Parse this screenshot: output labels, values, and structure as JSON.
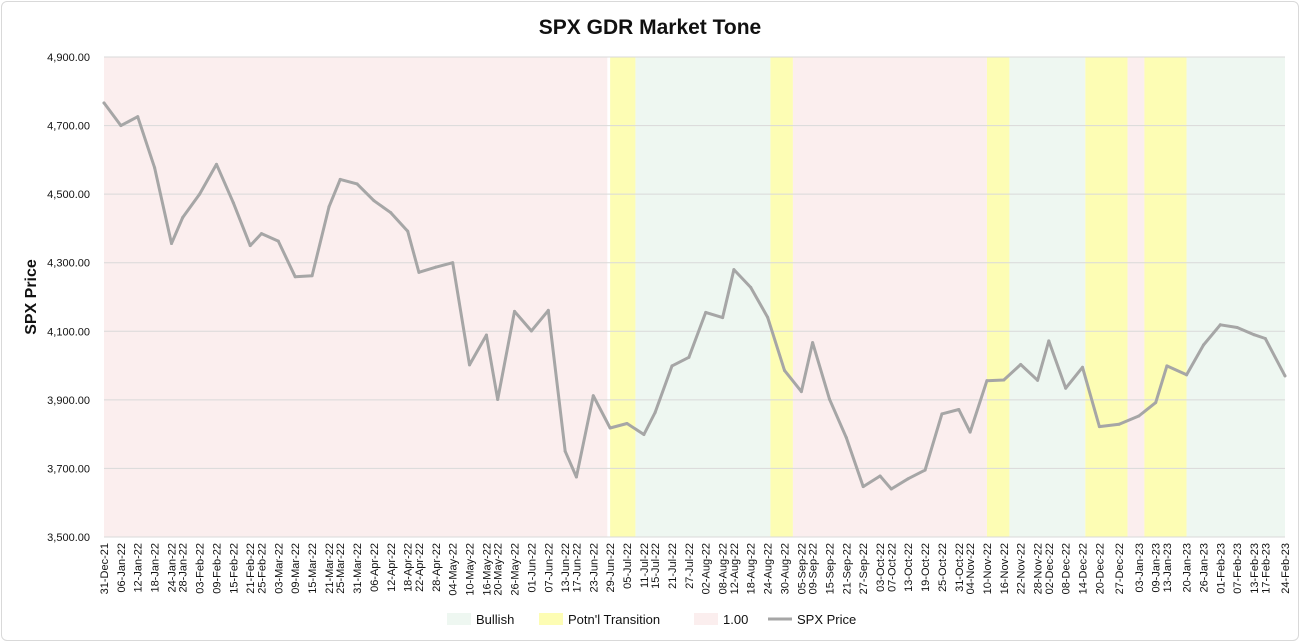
{
  "chart_data": {
    "type": "line",
    "title": "SPX GDR Market Tone",
    "xlabel": "",
    "ylabel": "SPX Price",
    "ylim": [
      3500,
      4900
    ],
    "yticks": [
      "3,500.00",
      "3,700.00",
      "3,900.00",
      "4,100.00",
      "4,300.00",
      "4,500.00",
      "4,700.00",
      "4,900.00"
    ],
    "ytick_values": [
      3500,
      3700,
      3900,
      4100,
      4300,
      4500,
      4700,
      4900
    ],
    "grid": "horizontal",
    "legend_position": "bottom",
    "x_tick_labels": [
      "31-Dec-21",
      "06-Jan-22",
      "12-Jan-22",
      "18-Jan-22",
      "24-Jan-22",
      "28-Jan-22",
      "03-Feb-22",
      "09-Feb-22",
      "15-Feb-22",
      "21-Feb-22",
      "25-Feb-22",
      "03-Mar-22",
      "09-Mar-22",
      "15-Mar-22",
      "21-Mar-22",
      "25-Mar-22",
      "31-Mar-22",
      "06-Apr-22",
      "12-Apr-22",
      "18-Apr-22",
      "22-Apr-22",
      "28-Apr-22",
      "04-May-22",
      "10-May-22",
      "16-May-22",
      "20-May-22",
      "26-May-22",
      "01-Jun-22",
      "07-Jun-22",
      "13-Jun-22",
      "17-Jun-22",
      "23-Jun-22",
      "29-Jun-22",
      "05-Jul-22",
      "11-Jul-22",
      "15-Jul-22",
      "21-Jul-22",
      "27-Jul-22",
      "02-Aug-22",
      "08-Aug-22",
      "12-Aug-22",
      "18-Aug-22",
      "24-Aug-22",
      "30-Aug-22",
      "05-Sep-22",
      "09-Sep-22",
      "15-Sep-22",
      "21-Sep-22",
      "27-Sep-22",
      "03-Oct-22",
      "07-Oct-22",
      "13-Oct-22",
      "19-Oct-22",
      "25-Oct-22",
      "31-Oct-22",
      "04-Nov-22",
      "10-Nov-22",
      "16-Nov-22",
      "22-Nov-22",
      "28-Nov-22",
      "02-Dec-22",
      "08-Dec-22",
      "14-Dec-22",
      "20-Dec-22",
      "27-Dec-22",
      "03-Jan-23",
      "09-Jan-23",
      "13-Jan-23",
      "20-Jan-23",
      "26-Jan-23",
      "01-Feb-23",
      "07-Feb-23",
      "13-Feb-23",
      "17-Feb-23",
      "24-Feb-23"
    ],
    "legend": [
      {
        "name": "Bullish",
        "color": "#eef7f1",
        "kind": "area"
      },
      {
        "name": "Potn'l Transition",
        "color": "#fdfdb4",
        "kind": "area"
      },
      {
        "name": "1.00",
        "color": "#fbeeee",
        "kind": "area"
      },
      {
        "name": "SPX Price",
        "color": "#a6a6a6",
        "kind": "line"
      }
    ],
    "tone_regions": [
      {
        "tone": "1.00",
        "from": "31-Dec-21",
        "to": "28-Jun-22",
        "color": "#fbeeee"
      },
      {
        "tone": "Potn'l Transition",
        "from": "29-Jun-22",
        "to": "08-Jul-22",
        "color": "#fdfdb4"
      },
      {
        "tone": "Bullish",
        "from": "08-Jul-22",
        "to": "25-Aug-22",
        "color": "#eef7f1"
      },
      {
        "tone": "Potn'l Transition",
        "from": "25-Aug-22",
        "to": "02-Sep-22",
        "color": "#fdfdb4"
      },
      {
        "tone": "1.00",
        "from": "02-Sep-22",
        "to": "10-Nov-22",
        "color": "#fbeeee"
      },
      {
        "tone": "Potn'l Transition",
        "from": "10-Nov-22",
        "to": "18-Nov-22",
        "color": "#fdfdb4"
      },
      {
        "tone": "Bullish",
        "from": "18-Nov-22",
        "to": "15-Dec-22",
        "color": "#eef7f1"
      },
      {
        "tone": "Potn'l Transition",
        "from": "15-Dec-22",
        "to": "30-Dec-22",
        "color": "#fdfdb4"
      },
      {
        "tone": "1.00",
        "from": "30-Dec-22",
        "to": "05-Jan-23",
        "color": "#fbeeee"
      },
      {
        "tone": "Potn'l Transition",
        "from": "05-Jan-23",
        "to": "20-Jan-23",
        "color": "#fdfdb4"
      },
      {
        "tone": "Bullish",
        "from": "20-Jan-23",
        "to": "24-Feb-23",
        "color": "#eef7f1"
      }
    ],
    "series": [
      {
        "name": "SPX Price",
        "color": "#a6a6a6",
        "x": [
          "31-Dec-21",
          "06-Jan-22",
          "12-Jan-22",
          "18-Jan-22",
          "24-Jan-22",
          "28-Jan-22",
          "03-Feb-22",
          "09-Feb-22",
          "15-Feb-22",
          "21-Feb-22",
          "25-Feb-22",
          "03-Mar-22",
          "09-Mar-22",
          "15-Mar-22",
          "21-Mar-22",
          "25-Mar-22",
          "31-Mar-22",
          "06-Apr-22",
          "12-Apr-22",
          "18-Apr-22",
          "22-Apr-22",
          "28-Apr-22",
          "04-May-22",
          "10-May-22",
          "16-May-22",
          "20-May-22",
          "26-May-22",
          "01-Jun-22",
          "07-Jun-22",
          "13-Jun-22",
          "17-Jun-22",
          "23-Jun-22",
          "29-Jun-22",
          "05-Jul-22",
          "11-Jul-22",
          "15-Jul-22",
          "21-Jul-22",
          "27-Jul-22",
          "02-Aug-22",
          "08-Aug-22",
          "12-Aug-22",
          "18-Aug-22",
          "24-Aug-22",
          "30-Aug-22",
          "05-Sep-22",
          "09-Sep-22",
          "15-Sep-22",
          "21-Sep-22",
          "27-Sep-22",
          "03-Oct-22",
          "07-Oct-22",
          "13-Oct-22",
          "19-Oct-22",
          "25-Oct-22",
          "31-Oct-22",
          "04-Nov-22",
          "10-Nov-22",
          "16-Nov-22",
          "22-Nov-22",
          "28-Nov-22",
          "02-Dec-22",
          "08-Dec-22",
          "14-Dec-22",
          "20-Dec-22",
          "27-Dec-22",
          "03-Jan-23",
          "09-Jan-23",
          "13-Jan-23",
          "20-Jan-23",
          "26-Jan-23",
          "01-Feb-23",
          "07-Feb-23",
          "13-Feb-23",
          "17-Feb-23",
          "24-Feb-23"
        ],
        "values": [
          4766,
          4700,
          4726,
          4577,
          4356,
          4432,
          4500,
          4587,
          4475,
          4350,
          4385,
          4363,
          4259,
          4262,
          4463,
          4543,
          4530,
          4481,
          4446,
          4392,
          4272,
          4287,
          4300,
          4002,
          4089,
          3901,
          4158,
          4101,
          4161,
          3750,
          3675,
          3912,
          3818,
          3831,
          3799,
          3863,
          3999,
          4024,
          4155,
          4140,
          4280,
          4228,
          4141,
          3986,
          3924,
          4067,
          3902,
          3790,
          3647,
          3678,
          3640,
          3670,
          3695,
          3859,
          3872,
          3806,
          3956,
          3958,
          4003,
          3957,
          4072,
          3934,
          3995,
          3822,
          3829,
          3853,
          3892,
          3999,
          3973,
          4060,
          4119,
          4111,
          4090,
          4079,
          3970
        ]
      }
    ]
  }
}
